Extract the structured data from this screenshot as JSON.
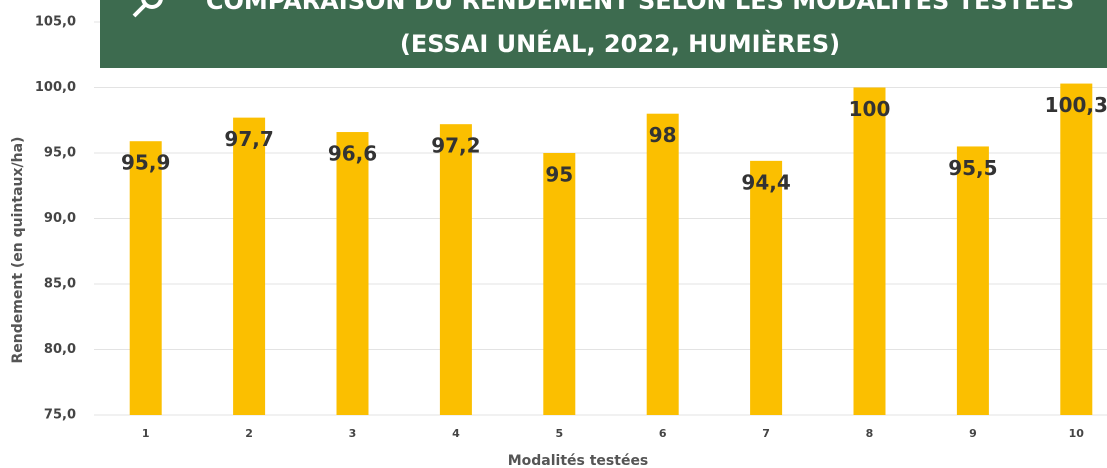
{
  "chart_data": {
    "type": "bar",
    "title": "COMPARAISON DU RENDEMENT SELON LES MODALITÉS TESTÉES",
    "subtitle": "(ESSAI UNÉAL, 2022, HUMIÈRES)",
    "x_label": "Modalités testées",
    "y_label": "Rendement (en quintaux/ha)",
    "categories": [
      "1",
      "2",
      "3",
      "4",
      "5",
      "6",
      "7",
      "8",
      "9",
      "10"
    ],
    "values": [
      95.9,
      97.7,
      96.6,
      97.2,
      95,
      98,
      94.4,
      100,
      95.5,
      100.3
    ],
    "value_labels": [
      "95,9",
      "97,7",
      "96,6",
      "97,2",
      "95",
      "98",
      "94,4",
      "100",
      "95,5",
      "100,3"
    ],
    "color": "#fbbf00",
    "ylim": [
      75,
      105
    ],
    "yticks": [
      {
        "value": 75,
        "label": "75,0"
      },
      {
        "value": 80,
        "label": "80,0"
      },
      {
        "value": 85,
        "label": "85,0"
      },
      {
        "value": 90,
        "label": "90,0"
      },
      {
        "value": 95,
        "label": "95,0"
      },
      {
        "value": 100,
        "label": "100,0"
      },
      {
        "value": 105,
        "label": "105,0"
      }
    ],
    "grid": true
  }
}
